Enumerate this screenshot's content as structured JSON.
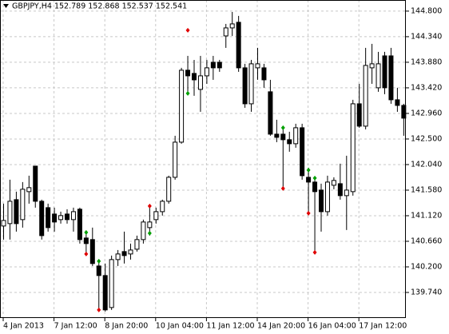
{
  "chart_data": {
    "type": "candlestick",
    "title": "GBPJPY,H4  152.789 152.868 152.537 152.541",
    "categories": [
      "4 Jan 2013",
      null,
      null,
      null,
      null,
      null,
      null,
      null,
      "7 Jan 12:00",
      null,
      null,
      null,
      null,
      null,
      null,
      null,
      "8 Jan 20:00",
      null,
      null,
      null,
      null,
      null,
      null,
      null,
      "10 Jan 04:00",
      null,
      null,
      null,
      null,
      null,
      null,
      null,
      "11 Jan 12:00",
      null,
      null,
      null,
      null,
      null,
      null,
      null,
      "14 Jan 20:00",
      null,
      null,
      null,
      null,
      null,
      null,
      null,
      "16 Jan 04:00",
      null,
      null,
      null,
      null,
      null,
      null,
      null,
      "17 Jan 12:00",
      null,
      null,
      null,
      null,
      null,
      null,
      null
    ],
    "open": [
      140.935,
      140.978,
      141.409,
      141.05,
      141.553,
      142.012,
      141.38,
      141.265,
      141.15,
      141.05,
      141.15,
      141.05,
      141.237,
      140.719,
      140.691,
      140.216,
      140.044,
      139.469,
      140.331,
      140.475,
      140.432,
      140.518,
      140.691,
      140.906,
      141.05,
      141.193,
      141.38,
      141.811,
      142.443,
      143.737,
      143.679,
      143.392,
      143.636,
      143.88,
      143.88,
      144.354,
      144.498,
      144.599,
      143.78,
      143.133,
      143.78,
      143.78,
      143.349,
      142.587,
      142.587,
      142.487,
      142.415,
      142.702,
      141.811,
      141.725,
      141.581,
      141.193,
      141.668,
      141.696,
      141.481,
      141.553,
      143.133,
      142.731,
      143.78,
      143.421,
      143.995,
      143.995,
      143.205,
      143.104
    ],
    "high": [
      141.337,
      141.768,
      141.553,
      141.725,
      141.84,
      142.012,
      141.409,
      141.337,
      141.265,
      141.193,
      141.237,
      141.265,
      141.265,
      140.834,
      140.906,
      140.303,
      140.26,
      140.403,
      140.503,
      140.834,
      140.619,
      140.762,
      141.05,
      141.294,
      141.265,
      141.409,
      141.84,
      142.558,
      143.78,
      143.995,
      143.923,
      143.995,
      143.923,
      143.995,
      143.923,
      144.57,
      144.785,
      144.714,
      143.852,
      143.923,
      144.139,
      143.852,
      143.564,
      142.846,
      142.702,
      142.63,
      142.774,
      142.774,
      141.984,
      141.811,
      141.696,
      141.84,
      141.811,
      142.056,
      142.199,
      143.205,
      143.492,
      144.139,
      144.211,
      144.067,
      144.067,
      144.139,
      143.421,
      143.133
    ],
    "low": [
      140.691,
      140.691,
      140.834,
      140.906,
      141.337,
      141.265,
      140.691,
      140.834,
      140.834,
      140.978,
      140.978,
      140.834,
      140.619,
      140.432,
      140.216,
      139.426,
      139.397,
      139.426,
      140.216,
      140.26,
      140.331,
      140.475,
      140.619,
      140.762,
      140.978,
      141.122,
      141.337,
      141.768,
      142.415,
      143.32,
      143.277,
      142.989,
      143.492,
      143.564,
      143.708,
      144.139,
      144.354,
      143.708,
      143.061,
      142.989,
      143.564,
      143.421,
      142.558,
      142.443,
      141.61,
      142.271,
      142.343,
      141.768,
      141.165,
      140.461,
      140.834,
      141.122,
      141.596,
      141.409,
      140.863,
      141.481,
      142.702,
      142.673,
      143.492,
      143.349,
      143.306,
      143.133,
      142.989,
      142.558
    ],
    "close": [
      141.035,
      141.38,
      140.978,
      141.596,
      141.625,
      141.38,
      140.762,
      140.906,
      141.007,
      141.122,
      141.05,
      141.193,
      140.691,
      140.619,
      140.26,
      140.044,
      139.426,
      140.331,
      140.432,
      140.403,
      140.503,
      140.691,
      141.007,
      141.007,
      141.193,
      141.38,
      141.811,
      142.443,
      143.737,
      143.636,
      143.564,
      143.636,
      143.78,
      143.78,
      143.78,
      144.498,
      144.57,
      143.78,
      143.133,
      143.852,
      143.852,
      143.564,
      142.587,
      142.53,
      142.487,
      142.415,
      142.702,
      141.84,
      141.725,
      141.553,
      141.193,
      141.725,
      141.754,
      141.481,
      141.581,
      143.133,
      142.731,
      143.823,
      143.852,
      143.852,
      143.421,
      143.205,
      143.104,
      142.875
    ],
    "markers": [
      {
        "color": "#e00000",
        "values": [
          null,
          null,
          null,
          null,
          null,
          null,
          null,
          null,
          null,
          null,
          null,
          null,
          null,
          140.432,
          null,
          139.426,
          null,
          null,
          null,
          null,
          null,
          null,
          null,
          141.294,
          null,
          null,
          null,
          null,
          null,
          144.455,
          null,
          null,
          null,
          null,
          null,
          null,
          null,
          null,
          null,
          null,
          null,
          null,
          null,
          null,
          141.61,
          null,
          null,
          null,
          141.165,
          140.461,
          null,
          null,
          null,
          null,
          null,
          null,
          null,
          null,
          null,
          null,
          null,
          null,
          null,
          null
        ]
      },
      {
        "color": "#00a000",
        "values": [
          null,
          null,
          null,
          null,
          null,
          null,
          null,
          null,
          null,
          null,
          null,
          null,
          null,
          140.82,
          null,
          140.303,
          null,
          null,
          null,
          null,
          null,
          null,
          null,
          140.806,
          null,
          null,
          null,
          null,
          null,
          143.32,
          null,
          null,
          null,
          null,
          null,
          null,
          null,
          null,
          null,
          null,
          null,
          null,
          null,
          null,
          142.702,
          null,
          null,
          null,
          141.941,
          141.797,
          null,
          null,
          null,
          null,
          null,
          null,
          null,
          null,
          null,
          null,
          null,
          null,
          null,
          null
        ]
      }
    ],
    "ylim": [
      139.28,
      145.0
    ],
    "yticks": [
      {
        "value": 139.74,
        "label": "139.740"
      },
      {
        "value": 140.2,
        "label": "140.200"
      },
      {
        "value": 140.66,
        "label": "140.660"
      },
      {
        "value": 141.12,
        "label": "141.120"
      },
      {
        "value": 141.58,
        "label": "141.580"
      },
      {
        "value": 142.04,
        "label": "142.040"
      },
      {
        "value": 142.5,
        "label": "142.500"
      },
      {
        "value": 142.96,
        "label": "142.960"
      },
      {
        "value": 143.42,
        "label": "143.420"
      },
      {
        "value": 143.88,
        "label": "143.880"
      },
      {
        "value": 144.34,
        "label": "144.340"
      },
      {
        "value": 144.8,
        "label": "144.800"
      }
    ],
    "grid": true,
    "bull_color": "#ffffff",
    "bear_color": "#000000"
  }
}
